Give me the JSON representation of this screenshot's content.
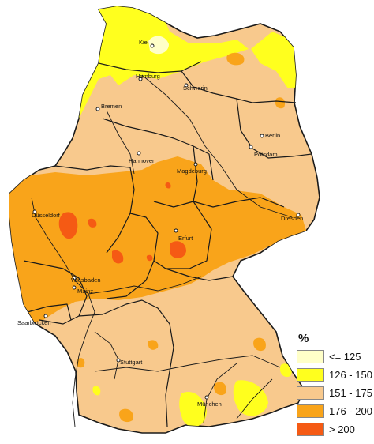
{
  "cities": [
    {
      "id": "kiel",
      "name": "Kiel"
    },
    {
      "id": "hamburg",
      "name": "Hamburg"
    },
    {
      "id": "schwerin",
      "name": "Schwerin"
    },
    {
      "id": "bremen",
      "name": "Bremen"
    },
    {
      "id": "berlin",
      "name": "Berlin"
    },
    {
      "id": "potsdam",
      "name": "Potsdam"
    },
    {
      "id": "hannover",
      "name": "Hannover"
    },
    {
      "id": "magdeburg",
      "name": "Magdeburg"
    },
    {
      "id": "duesseldorf",
      "name": "Düsseldorf"
    },
    {
      "id": "erfurt",
      "name": "Erfurt"
    },
    {
      "id": "dresden",
      "name": "Dresden"
    },
    {
      "id": "wiesbaden",
      "name": "Wiesbaden"
    },
    {
      "id": "mainz",
      "name": "Mainz"
    },
    {
      "id": "saarbruecken",
      "name": "Saarbrücken"
    },
    {
      "id": "stuttgart",
      "name": "Stuttgart"
    },
    {
      "id": "muenchen",
      "name": "München"
    }
  ],
  "legend": {
    "title": "%",
    "items": [
      {
        "label": "<= 125",
        "color": "#ffffc8"
      },
      {
        "label": "126 - 150",
        "color": "#ffff1e"
      },
      {
        "label": "151 - 175",
        "color": "#f8c98d"
      },
      {
        "label": "176 - 200",
        "color": "#f9a41a"
      },
      {
        "label": "> 200",
        "color": "#f55a14"
      }
    ]
  },
  "colors": {
    "land_base": "#f8c98d",
    "sea": "#ffffff",
    "border": "#1a1a1a"
  }
}
